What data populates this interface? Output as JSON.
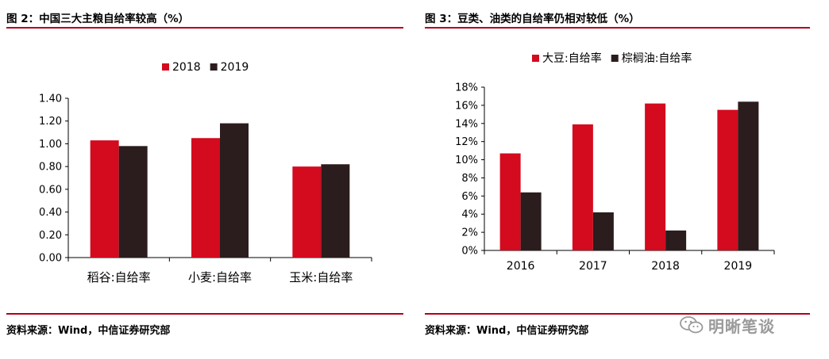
{
  "colors": {
    "red": "#d40a1e",
    "dark": "#2b1d1d",
    "rule": "#b3001b"
  },
  "left": {
    "title": "图 2：中国三大主粮自给率较高（%）",
    "source": "资料来源：Wind，中信证券研究部",
    "chart_data": {
      "type": "bar",
      "title": "",
      "categories": [
        "稻谷:自给率",
        "小麦:自给率",
        "玉米:自给率"
      ],
      "series": [
        {
          "name": "2018",
          "values": [
            1.03,
            1.05,
            0.8
          ]
        },
        {
          "name": "2019",
          "values": [
            0.98,
            1.18,
            0.82
          ]
        }
      ],
      "ylim": [
        0,
        1.4
      ],
      "yticks": [
        "0.00",
        "0.20",
        "0.40",
        "0.60",
        "0.80",
        "1.00",
        "1.20",
        "1.40"
      ],
      "grid": false,
      "legend": "top-center"
    }
  },
  "right": {
    "title": "图 3：豆类、油类的自给率仍相对较低（%）",
    "source": "资料来源：Wind，中信证券研究部",
    "chart_data": {
      "type": "bar",
      "title": "",
      "categories": [
        "2016",
        "2017",
        "2018",
        "2019"
      ],
      "series": [
        {
          "name": "大豆:自给率",
          "values": [
            10.7,
            13.9,
            16.2,
            15.5
          ]
        },
        {
          "name": "棕榈油:自给率",
          "values": [
            6.4,
            4.2,
            2.2,
            16.4
          ]
        }
      ],
      "ylim": [
        0,
        18
      ],
      "yticks": [
        "0%",
        "2%",
        "4%",
        "6%",
        "8%",
        "10%",
        "12%",
        "14%",
        "16%",
        "18%"
      ],
      "grid": false,
      "legend": "top-center"
    }
  },
  "watermark": {
    "icon": "wechat-icon",
    "text": "明晰笔谈"
  }
}
